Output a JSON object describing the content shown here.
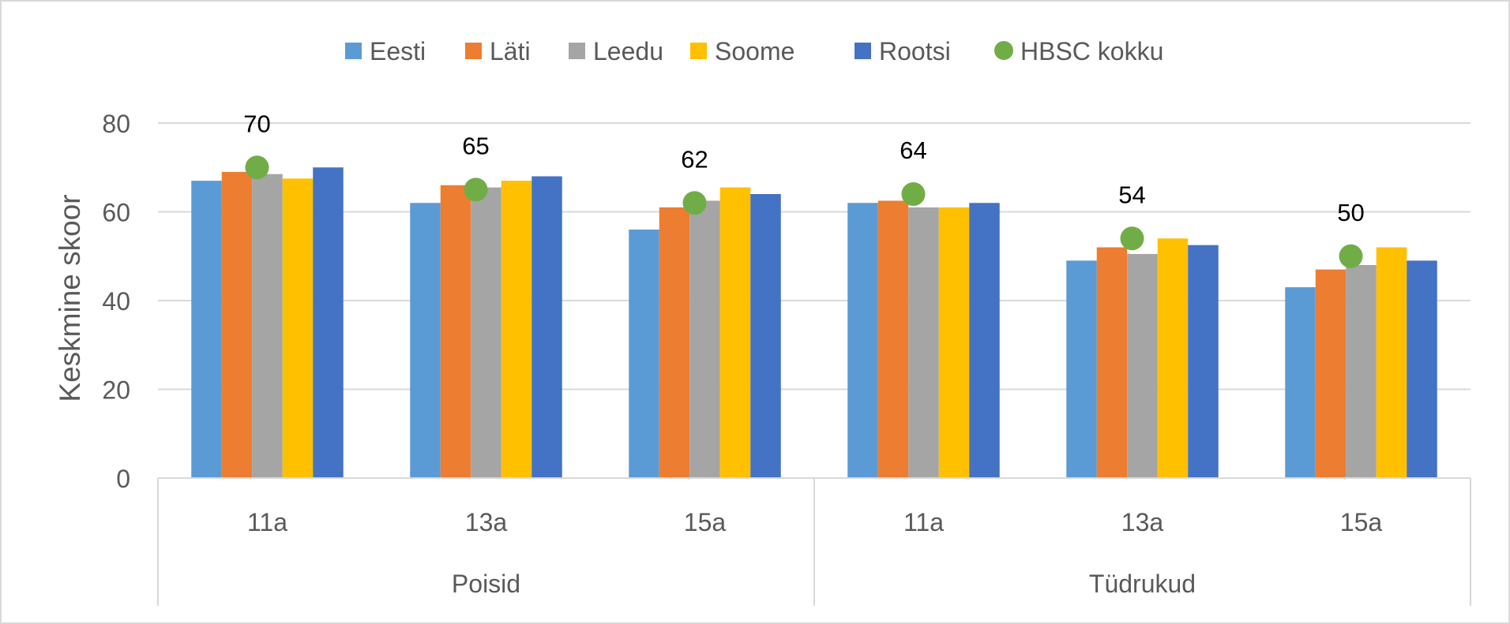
{
  "chart_data": {
    "type": "bar",
    "title": "",
    "ylabel": "Keskmine skoor",
    "xlabel": "",
    "ylim": [
      0,
      80
    ],
    "yticks": [
      0,
      20,
      40,
      60,
      80
    ],
    "grid": true,
    "legend_position": "top",
    "groups": [
      {
        "label": "Poisid",
        "categories": [
          "11a",
          "13a",
          "15a"
        ]
      },
      {
        "label": "Tüdrukud",
        "categories": [
          "11a",
          "13a",
          "15a"
        ]
      }
    ],
    "categories": [
      "11a",
      "13a",
      "15a",
      "11a",
      "13a",
      "15a"
    ],
    "series": [
      {
        "name": "Eesti",
        "color": "#5B9BD5",
        "values": [
          67,
          62,
          56,
          62,
          49,
          43
        ]
      },
      {
        "name": "Läti",
        "color": "#ED7D31",
        "values": [
          69,
          66,
          61,
          62.5,
          52,
          47
        ]
      },
      {
        "name": "Leedu",
        "color": "#A5A5A5",
        "values": [
          68.5,
          65.5,
          62.5,
          61,
          50.5,
          48
        ]
      },
      {
        "name": "Soome",
        "color": "#FFC000",
        "values": [
          67.5,
          67,
          65.5,
          61,
          54,
          52
        ]
      },
      {
        "name": "Rootsi",
        "color": "#4472C4",
        "values": [
          70,
          68,
          64,
          62,
          52.5,
          49
        ]
      }
    ],
    "overlay_series": {
      "name": "HBSC kokku",
      "type": "scatter",
      "color": "#70AD47",
      "values": [
        70,
        65,
        62,
        64,
        54,
        50
      ],
      "data_labels": [
        "70",
        "65",
        "62",
        "64",
        "54",
        "50"
      ]
    }
  }
}
